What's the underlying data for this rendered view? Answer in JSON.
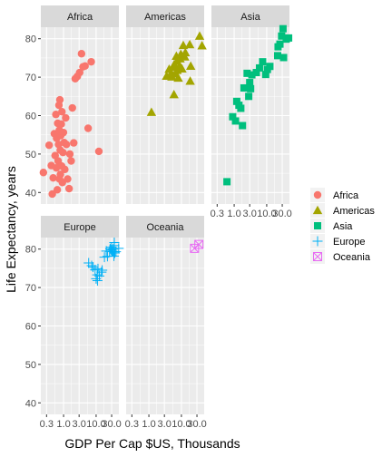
{
  "chart_data": {
    "type": "scatter",
    "xlabel": "GDP Per Cap  $US, Thousands",
    "ylabel": "Life Expectancy, years",
    "x_scale": "log10",
    "x_ticks": [
      0.3,
      1.0,
      3.0,
      10.0,
      30.0
    ],
    "x_tick_labels": [
      "0.3",
      "1.0",
      "3.0",
      "10.0",
      "30.0"
    ],
    "xlim": [
      0.2,
      50
    ],
    "y_ticks": [
      40,
      50,
      60,
      70,
      80
    ],
    "y_tick_labels": [
      "40",
      "50",
      "60",
      "70",
      "80"
    ],
    "ylim": [
      37,
      83
    ],
    "grid": true,
    "legend_position": "right",
    "panels": [
      {
        "name": "Africa",
        "color": "#F8766D",
        "marker": "circle",
        "points": [
          [
            0.24,
            45.2
          ],
          [
            0.36,
            52.3
          ],
          [
            0.42,
            47.0
          ],
          [
            0.45,
            39.6
          ],
          [
            0.48,
            43.8
          ],
          [
            0.52,
            55.3
          ],
          [
            0.55,
            49.6
          ],
          [
            0.58,
            60.3
          ],
          [
            0.6,
            46.4
          ],
          [
            0.61,
            54.1
          ],
          [
            0.64,
            40.7
          ],
          [
            0.66,
            58.0
          ],
          [
            0.68,
            48.2
          ],
          [
            0.7,
            52.5
          ],
          [
            0.72,
            62.7
          ],
          [
            0.74,
            56.2
          ],
          [
            0.75,
            43.5
          ],
          [
            0.77,
            64.1
          ],
          [
            0.79,
            51.0
          ],
          [
            0.8,
            44.7
          ],
          [
            0.82,
            54.8
          ],
          [
            0.85,
            57.8
          ],
          [
            0.87,
            46.9
          ],
          [
            0.89,
            61.0
          ],
          [
            0.92,
            42.6
          ],
          [
            0.96,
            50.4
          ],
          [
            0.99,
            55.6
          ],
          [
            1.04,
            53.0
          ],
          [
            1.09,
            46.0
          ],
          [
            1.16,
            59.4
          ],
          [
            1.22,
            52.5
          ],
          [
            1.33,
            43.5
          ],
          [
            1.48,
            41.0
          ],
          [
            1.56,
            50.0
          ],
          [
            1.71,
            48.2
          ],
          [
            1.86,
            62.0
          ],
          [
            2.05,
            52.9
          ],
          [
            2.28,
            69.6
          ],
          [
            2.65,
            70.2
          ],
          [
            3.12,
            71.2
          ],
          [
            3.56,
            76.1
          ],
          [
            3.95,
            72.7
          ],
          [
            4.57,
            72.9
          ],
          [
            5.68,
            56.7
          ],
          [
            7.06,
            74.0
          ],
          [
            12.15,
            50.7
          ]
        ]
      },
      {
        "name": "Americas",
        "color": "#A3A500",
        "marker": "triangle",
        "points": [
          [
            1.2,
            60.9
          ],
          [
            3.5,
            70.3
          ],
          [
            4.2,
            72.1
          ],
          [
            4.8,
            71.0
          ],
          [
            5.1,
            70.1
          ],
          [
            5.7,
            72.6
          ],
          [
            5.9,
            65.5
          ],
          [
            6.0,
            73.3
          ],
          [
            6.4,
            70.9
          ],
          [
            7.0,
            75.5
          ],
          [
            7.3,
            74.2
          ],
          [
            7.4,
            71.8
          ],
          [
            8.0,
            69.8
          ],
          [
            8.9,
            73.0
          ],
          [
            9.1,
            74.8
          ],
          [
            9.6,
            76.0
          ],
          [
            10.4,
            72.2
          ],
          [
            11.4,
            78.3
          ],
          [
            12.6,
            75.3
          ],
          [
            13.2,
            76.4
          ],
          [
            18.0,
            78.5
          ],
          [
            18.6,
            69.0
          ],
          [
            19.3,
            72.9
          ],
          [
            36.3,
            80.7
          ],
          [
            42.9,
            78.2
          ]
        ]
      },
      {
        "name": "Asia",
        "color": "#00BF7D",
        "marker": "square",
        "points": [
          [
            0.6,
            42.8
          ],
          [
            0.9,
            59.7
          ],
          [
            1.1,
            58.6
          ],
          [
            1.2,
            63.7
          ],
          [
            1.4,
            62.7
          ],
          [
            1.6,
            61.9
          ],
          [
            1.8,
            57.4
          ],
          [
            2.0,
            67.2
          ],
          [
            2.5,
            71.0
          ],
          [
            2.8,
            65.0
          ],
          [
            3.0,
            68.6
          ],
          [
            3.2,
            67.0
          ],
          [
            3.5,
            70.6
          ],
          [
            4.8,
            71.2
          ],
          [
            6.0,
            72.4
          ],
          [
            7.5,
            74.0
          ],
          [
            9.3,
            70.7
          ],
          [
            10.5,
            72.0
          ],
          [
            12.5,
            72.8
          ],
          [
            21.7,
            75.6
          ],
          [
            22.3,
            77.9
          ],
          [
            25.5,
            78.6
          ],
          [
            28.7,
            80.7
          ],
          [
            31.7,
            82.6
          ],
          [
            33.0,
            75.1
          ],
          [
            39.7,
            79.9
          ],
          [
            47.1,
            80.2
          ]
        ]
      },
      {
        "name": "Europe",
        "color": "#00B0F6",
        "marker": "plus",
        "points": [
          [
            5.9,
            76.4
          ],
          [
            7.3,
            75.7
          ],
          [
            8.0,
            75.3
          ],
          [
            9.3,
            74.6
          ],
          [
            10.0,
            72.3
          ],
          [
            10.8,
            73.3
          ],
          [
            11.0,
            71.8
          ],
          [
            11.4,
            74.9
          ],
          [
            12.6,
            73.0
          ],
          [
            14.6,
            74.0
          ],
          [
            15.4,
            74.5
          ],
          [
            18.0,
            77.9
          ],
          [
            20.5,
            79.5
          ],
          [
            22.3,
            78.1
          ],
          [
            25.8,
            79.4
          ],
          [
            27.0,
            80.1
          ],
          [
            28.6,
            79.8
          ],
          [
            29.8,
            80.5
          ],
          [
            30.5,
            79.4
          ],
          [
            32.2,
            79.4
          ],
          [
            33.2,
            80.0
          ],
          [
            33.7,
            79.3
          ],
          [
            35.3,
            78.2
          ],
          [
            36.1,
            80.9
          ],
          [
            36.2,
            81.7
          ],
          [
            37.5,
            79.0
          ],
          [
            40.7,
            79.3
          ],
          [
            49.4,
            80.2
          ]
        ]
      },
      {
        "name": "Oceania",
        "color": "#E76BF3",
        "marker": "box-x",
        "points": [
          [
            25.2,
            80.2
          ],
          [
            34.4,
            81.2
          ]
        ]
      }
    ]
  },
  "legend": [
    {
      "label": "Africa",
      "color": "#F8766D",
      "marker": "circle"
    },
    {
      "label": "Americas",
      "color": "#A3A500",
      "marker": "triangle"
    },
    {
      "label": "Asia",
      "color": "#00BF7D",
      "marker": "square"
    },
    {
      "label": "Europe",
      "color": "#00B0F6",
      "marker": "plus"
    },
    {
      "label": "Oceania",
      "color": "#E76BF3",
      "marker": "box-x"
    }
  ]
}
